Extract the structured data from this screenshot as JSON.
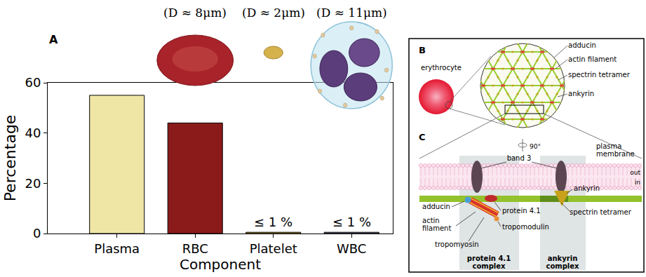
{
  "chart_data": {
    "type": "bar",
    "panel_label": "A",
    "categories": [
      "Plasma",
      "RBC",
      "Platelet",
      "WBC"
    ],
    "values": [
      55,
      44,
      0.5,
      0.5
    ],
    "colors": [
      "#efe6a6",
      "#8b1a1a",
      "#c9a13c",
      "#6a6f8a"
    ],
    "xlabel": "Component",
    "ylabel": "Percentage",
    "ylim": [
      0,
      60
    ],
    "yticks": [
      0,
      20,
      40,
      60
    ],
    "grid": false,
    "annotations": [
      {
        "category": "Platelet",
        "text": "≤ 1 %"
      },
      {
        "category": "WBC",
        "text": "≤ 1 %"
      }
    ],
    "cell_sizes": [
      {
        "category": "RBC",
        "text": "(D ≈ 8μm)"
      },
      {
        "category": "Platelet",
        "text": "(D ≈ 2μm)"
      },
      {
        "category": "WBC",
        "text": "(D ≈ 11μm)"
      }
    ]
  },
  "diagram": {
    "panel_b": {
      "letter": "B",
      "cell": "erythrocyte",
      "rotation": "90°",
      "labels": [
        "adducin",
        "actin filament",
        "spectrin tetramer",
        "ankyrin"
      ]
    },
    "panel_c": {
      "letter": "C",
      "labels": {
        "band3": "band 3",
        "membrane": "plasma membrane",
        "out": "out",
        "in": "in",
        "adducin": "adducin",
        "protein41": "protein 4.1",
        "actin": "actin filament",
        "tropomodulin": "tropomodulin",
        "tropomyosin": "tropomyosin",
        "ankyrin": "ankyrin",
        "spectrin": "spectrin tetramer"
      },
      "complexes": [
        "protein 4.1 complex",
        "ankyrin complex"
      ]
    }
  }
}
